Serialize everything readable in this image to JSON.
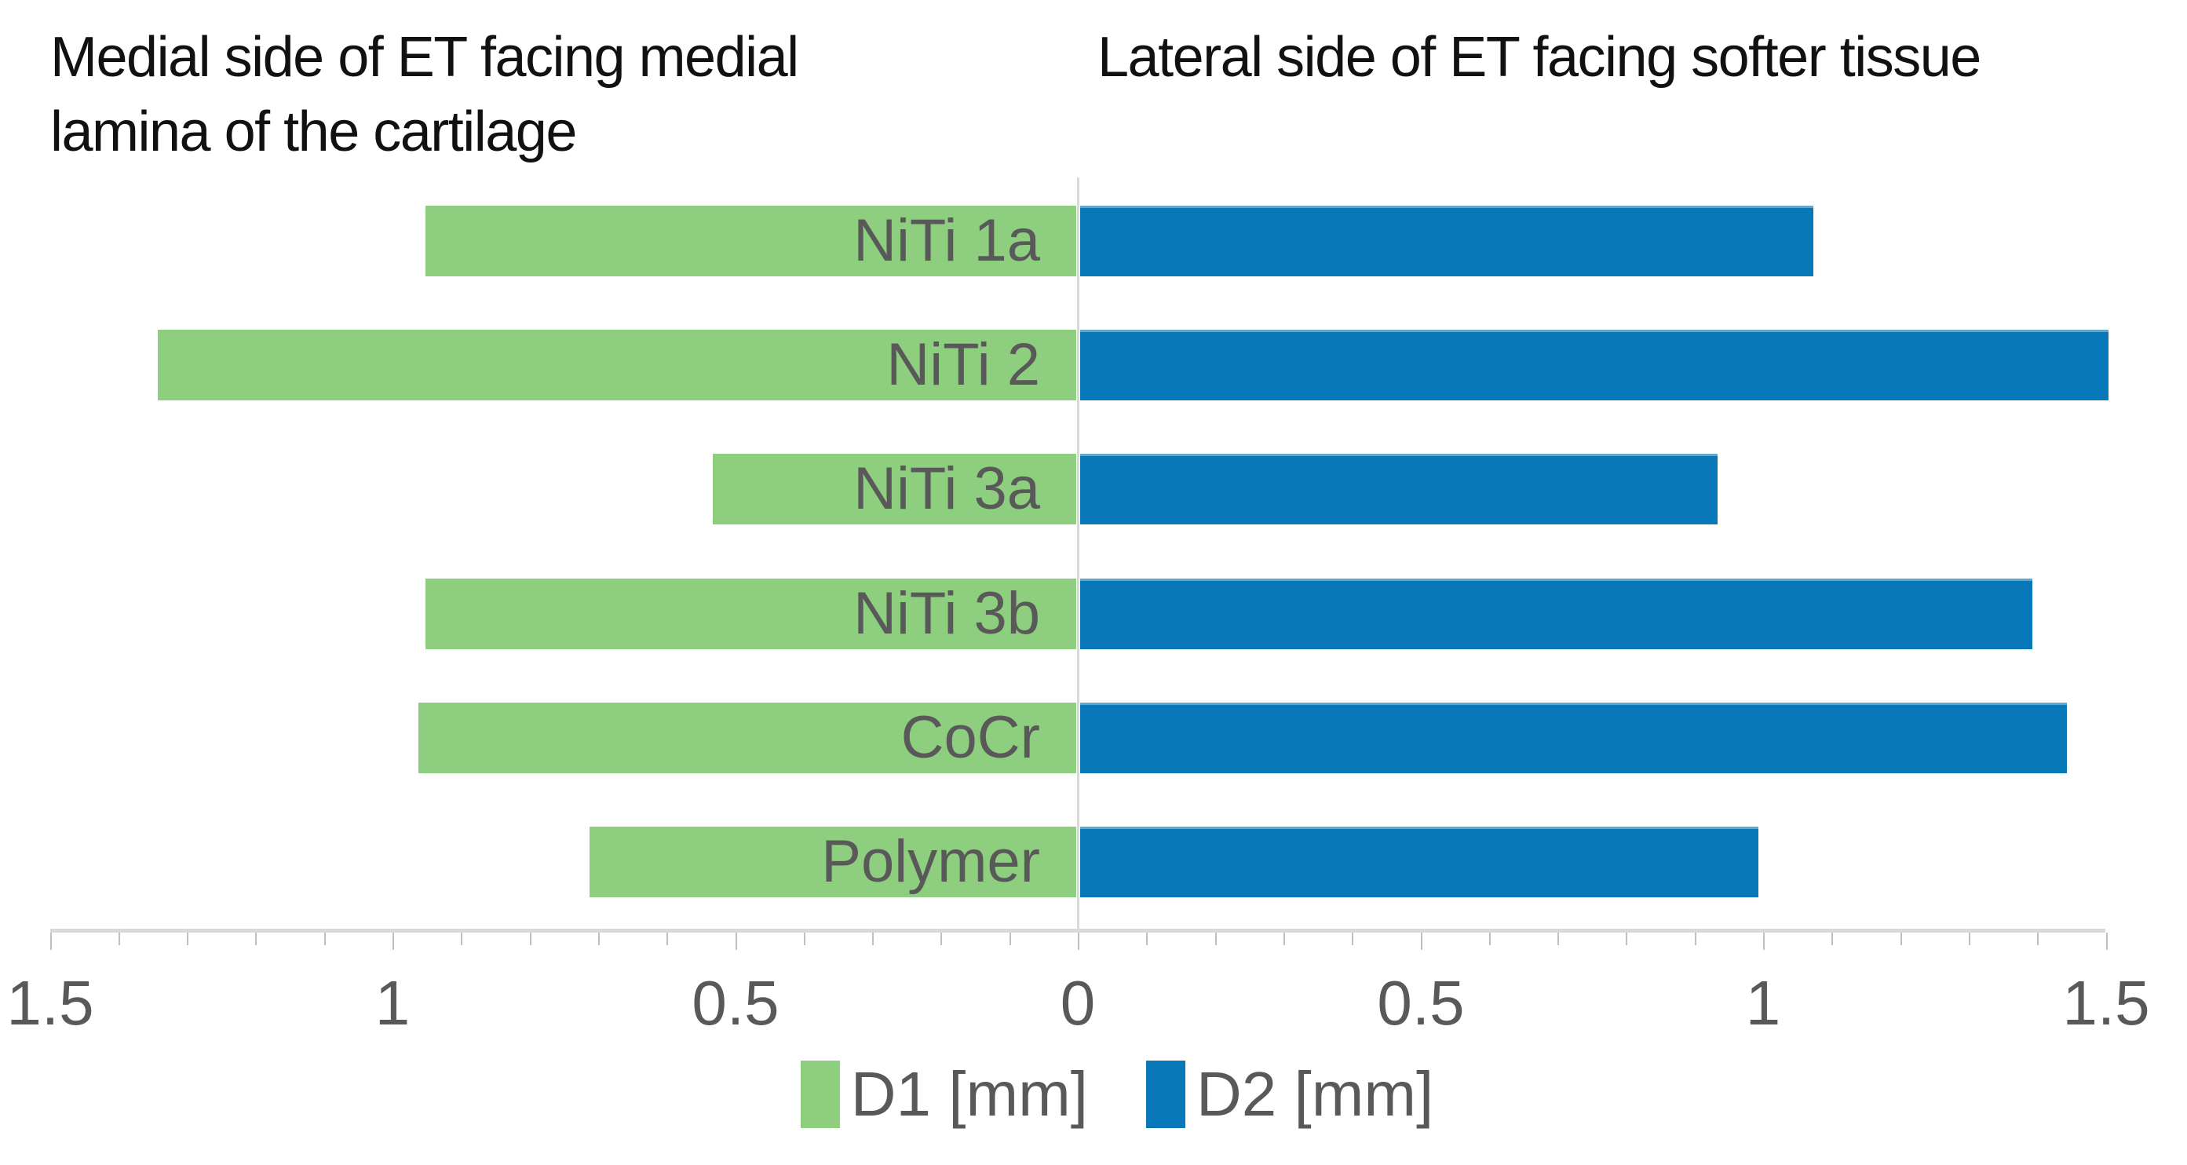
{
  "titles": {
    "left": "Medial side of ET facing medial lamina of the cartilage",
    "right": "Lateral side of ET facing softer tissue"
  },
  "legend": [
    {
      "label": "D1 [mm]",
      "color": "#8DCE7F"
    },
    {
      "label": "D2 [mm]",
      "color": "#0878B8"
    }
  ],
  "colors": {
    "green_series": "#8DCE7F",
    "blue_series": "#0878B8",
    "label_gray": "#595959",
    "axis_gray": "#d9d9d9",
    "tick_gray": "#bfbfbf",
    "title_black": "#111111"
  },
  "chart_data": {
    "type": "bar",
    "orientation": "horizontal-diverging",
    "title_left": "Medial side of ET facing medial lamina of the cartilage",
    "title_right": "Lateral side of ET facing softer tissue",
    "categories": [
      "NiTi 1a",
      "NiTi 2",
      "NiTi 3a",
      "NiTi 3b",
      "CoCr",
      "Polymer"
    ],
    "series": [
      {
        "name": "D1 [mm]",
        "side": "left",
        "color": "#8DCE7F",
        "values": [
          0.95,
          1.34,
          0.53,
          0.95,
          0.96,
          0.71
        ]
      },
      {
        "name": "D2 [mm]",
        "side": "right",
        "color": "#0878B8",
        "values": [
          1.07,
          1.5,
          0.93,
          1.39,
          1.44,
          0.99
        ]
      }
    ],
    "xlabel": "",
    "ylabel": "",
    "axis": {
      "min": -1.5,
      "max": 1.5,
      "major_tick_step": 0.5,
      "minor_tick_step": 0.1,
      "tick_labels": [
        "1.5",
        "1",
        "0.5",
        "0",
        "0.5",
        "1",
        "1.5"
      ]
    },
    "grid": "zero-line-only",
    "legend_position": "bottom-center",
    "value_unit": "mm"
  }
}
